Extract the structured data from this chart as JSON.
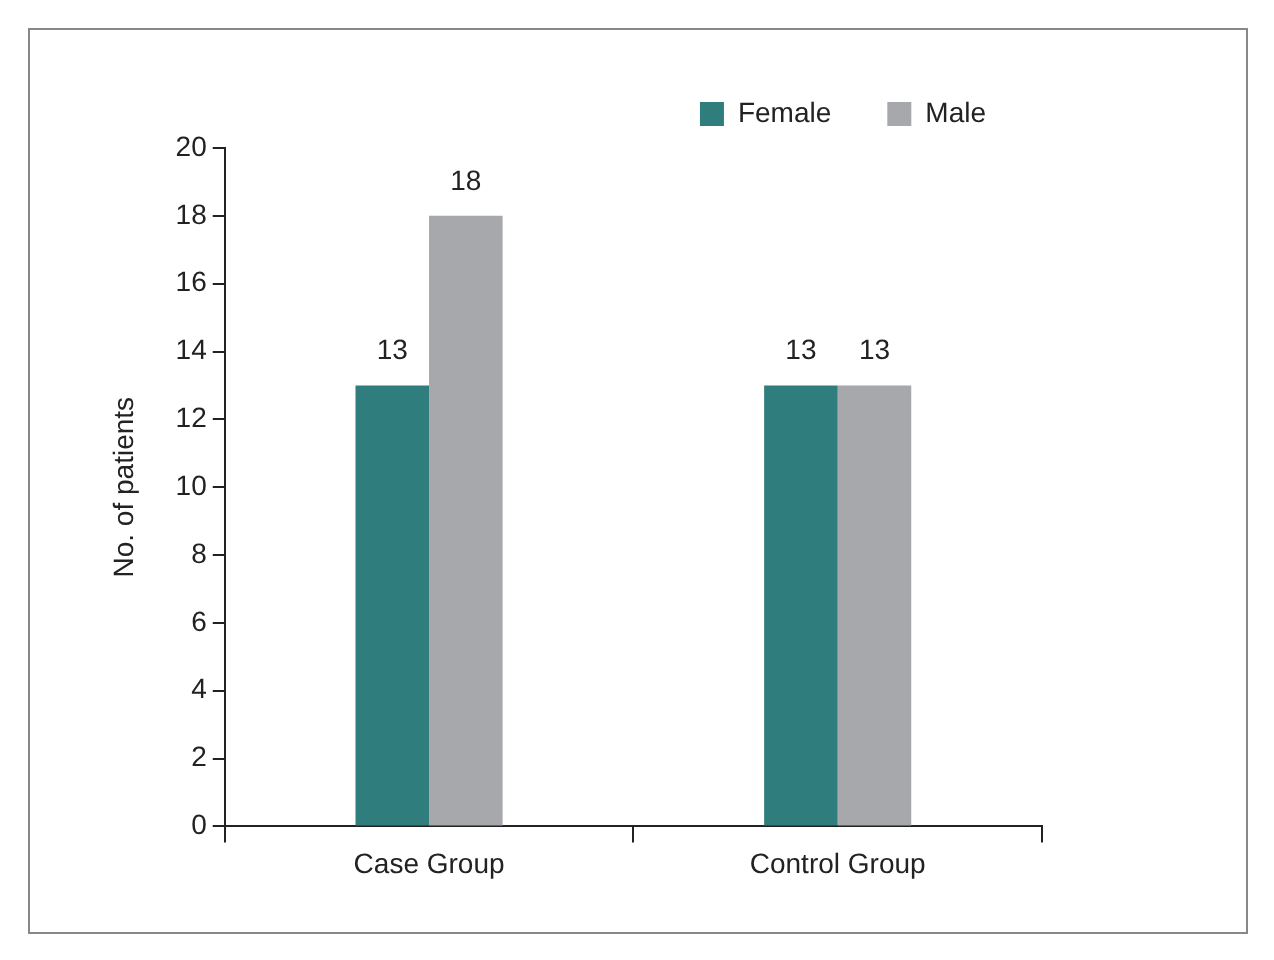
{
  "chart_data": {
    "type": "bar",
    "ylabel": "No. of patients",
    "categories": [
      "Case Group",
      "Control Group"
    ],
    "series": [
      {
        "name": "Female",
        "color": "#2f7d7d",
        "values": [
          13,
          13
        ]
      },
      {
        "name": "Male",
        "color": "#a7a8ab",
        "values": [
          18,
          13
        ]
      }
    ],
    "ylim": [
      0,
      20
    ],
    "yticks": [
      0,
      2,
      4,
      6,
      8,
      10,
      12,
      14,
      16,
      18,
      20
    ],
    "grid": false,
    "legend": "top right",
    "data_labels": true
  }
}
